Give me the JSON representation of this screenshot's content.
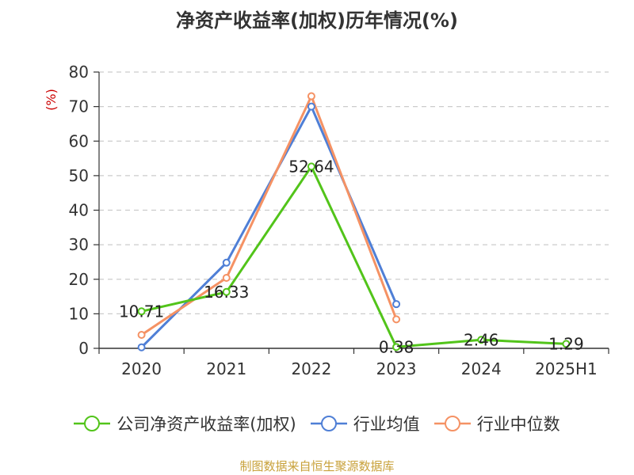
{
  "chart_data": {
    "type": "line",
    "title": "净资产收益率(加权)历年情况(%)",
    "ylabel": "(%)",
    "categories": [
      "2020",
      "2021",
      "2022",
      "2023",
      "2024",
      "2025H1"
    ],
    "ylim": [
      0,
      80
    ],
    "yticks": [
      0,
      10,
      20,
      30,
      40,
      50,
      60,
      70,
      80
    ],
    "grid": true,
    "legend_position": "bottom",
    "series": [
      {
        "name": "公司净资产收益率(加权)",
        "color": "#52c41a",
        "values": [
          10.71,
          16.33,
          52.64,
          0.38,
          2.46,
          1.29
        ],
        "labels": [
          "10.71",
          "16.33",
          "52.64",
          "0.38",
          "2.46",
          "1.29"
        ]
      },
      {
        "name": "行业均值",
        "color": "#4f7fd6",
        "values": [
          0.3,
          24.8,
          70.0,
          12.8,
          null,
          null
        ]
      },
      {
        "name": "行业中位数",
        "color": "#f59264",
        "values": [
          3.9,
          20.4,
          73.0,
          8.4,
          null,
          null
        ]
      }
    ]
  },
  "footer": {
    "source": "制图数据来自恒生聚源数据库"
  }
}
